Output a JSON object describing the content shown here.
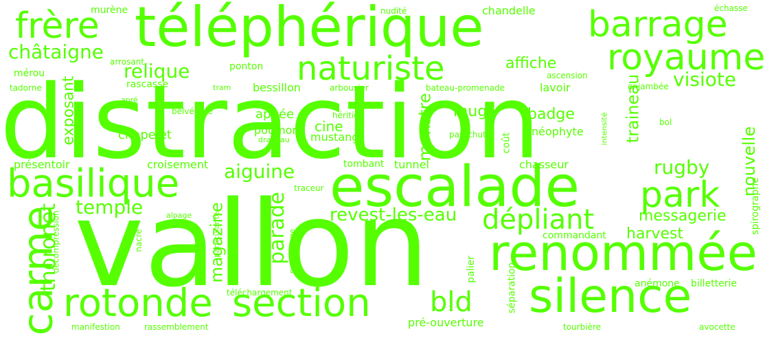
{
  "color": "#55ff00",
  "words": [
    "distraction",
    "vallon",
    "escalade",
    "téléphérique",
    "renommée",
    "silence",
    "section",
    "rotonde",
    "basilique",
    "naturiste",
    "royaume",
    "barrage",
    "frère",
    "carme",
    "park",
    "bld",
    "dépliant",
    "châtaigne",
    "relique",
    "visiote",
    "aiguine",
    "temple",
    "rugby",
    "thoronet",
    "parade",
    "revest-les-eau",
    "nouvelle",
    "traineau",
    "monstre",
    "magazine",
    "exposant",
    "affiche",
    "messagerie",
    "harvest",
    "badge",
    "mug",
    "cine",
    "mustang",
    "poumon",
    "apnée",
    "chapelet",
    "néophyte",
    "croisement",
    "présentoir",
    "tombant",
    "tunnel",
    "chasseur",
    "spirographe",
    "rascasse",
    "bessillon",
    "lavoir",
    "ponton",
    "arbousier",
    "tram",
    "bateau-promenade",
    "enjambée",
    "ascension",
    "murène",
    "nudité",
    "chandelle",
    "échasse",
    "arrosant",
    "mérou",
    "tadorne",
    "apré",
    "belvédère",
    "héritier",
    "drapeau",
    "parachute",
    "coût",
    "intensité",
    "bol",
    "traceur",
    "alpage",
    "particularité",
    "personnage",
    "décompression",
    "nacre",
    "commandant",
    "palier",
    "séparation",
    "téléchargement",
    "anémone",
    "billetterie",
    "pré-ouverture",
    "manifestion",
    "rassemblement",
    "tourbière",
    "avocette"
  ]
}
